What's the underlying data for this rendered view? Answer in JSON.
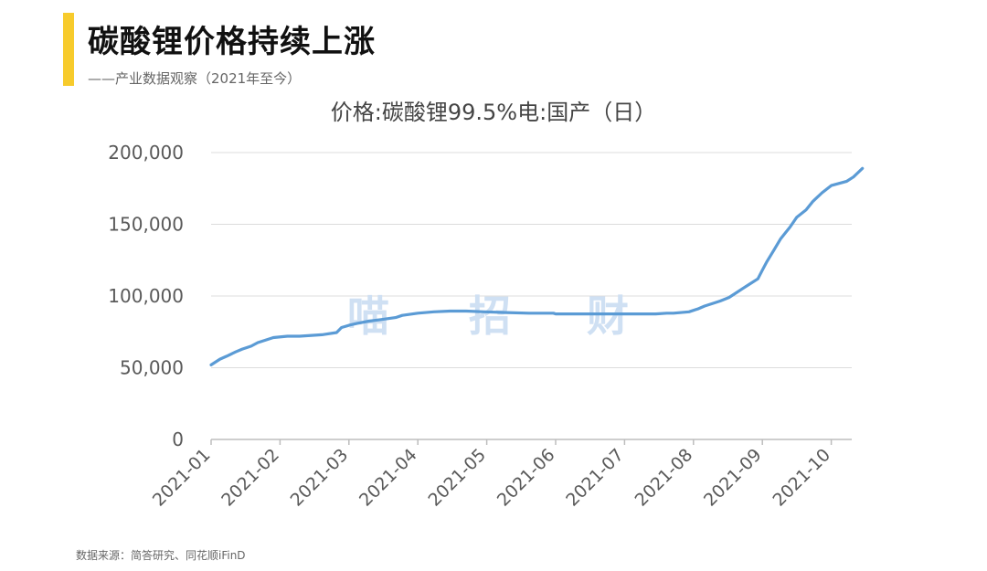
{
  "header": {
    "title": "碳酸锂价格持续上涨",
    "subtitle": "——产业数据观察（2021年至今）",
    "accent_color": "#f7cb2c"
  },
  "watermark": [
    "喵",
    "招",
    "财"
  ],
  "source": "数据来源：简答研究、同花顺iFinD",
  "chart_data": {
    "type": "line",
    "title": "价格:碳酸锂99.5%电:国产（日）",
    "xlabel": "",
    "ylabel": "",
    "ylim": [
      0,
      200000
    ],
    "y_ticks": [
      0,
      50000,
      100000,
      150000,
      200000
    ],
    "y_tick_labels": [
      "0",
      "50,000",
      "100,000",
      "150,000",
      "200,000"
    ],
    "x_tick_labels": [
      "2021-01",
      "2021-02",
      "2021-03",
      "2021-04",
      "2021-05",
      "2021-06",
      "2021-07",
      "2021-08",
      "2021-09",
      "2021-10"
    ],
    "grid": true,
    "line_color": "#5b9bd5",
    "series": [
      {
        "x": [
          "2021-01-01",
          "2021-01-05",
          "2021-01-08",
          "2021-01-12",
          "2021-01-15",
          "2021-01-19",
          "2021-01-22",
          "2021-01-26",
          "2021-01-29",
          "2021-02-04",
          "2021-02-09",
          "2021-02-18",
          "2021-02-24",
          "2021-02-26",
          "2021-03-02",
          "2021-03-05",
          "2021-03-10",
          "2021-03-15",
          "2021-03-22",
          "2021-03-25",
          "2021-04-01",
          "2021-04-08",
          "2021-04-15",
          "2021-04-22",
          "2021-04-30",
          "2021-05-10",
          "2021-05-20",
          "2021-05-31",
          "2021-06-01",
          "2021-06-15",
          "2021-07-01",
          "2021-07-15",
          "2021-07-20",
          "2021-07-23",
          "2021-07-30",
          "2021-08-03",
          "2021-08-06",
          "2021-08-10",
          "2021-08-13",
          "2021-08-17",
          "2021-08-20",
          "2021-08-23",
          "2021-08-26",
          "2021-08-30",
          "2021-09-01",
          "2021-09-03",
          "2021-09-06",
          "2021-09-09",
          "2021-09-13",
          "2021-09-16",
          "2021-09-20",
          "2021-09-23",
          "2021-09-27",
          "2021-10-01",
          "2021-10-08",
          "2021-10-11",
          "2021-10-13",
          "2021-10-15"
        ],
        "y": [
          52000,
          56000,
          58000,
          61000,
          63000,
          65000,
          67500,
          69500,
          71000,
          72000,
          72000,
          73000,
          74500,
          78000,
          80000,
          81000,
          82500,
          83500,
          85000,
          86500,
          88000,
          89000,
          89500,
          89500,
          89000,
          88500,
          88000,
          88000,
          87500,
          87500,
          87500,
          87500,
          88000,
          88000,
          89000,
          91000,
          93000,
          95000,
          96500,
          99000,
          102000,
          105000,
          108000,
          112000,
          118000,
          124000,
          132000,
          140000,
          148000,
          155000,
          160000,
          166000,
          172000,
          177000,
          180000,
          183000,
          186000,
          189000
        ]
      }
    ]
  }
}
